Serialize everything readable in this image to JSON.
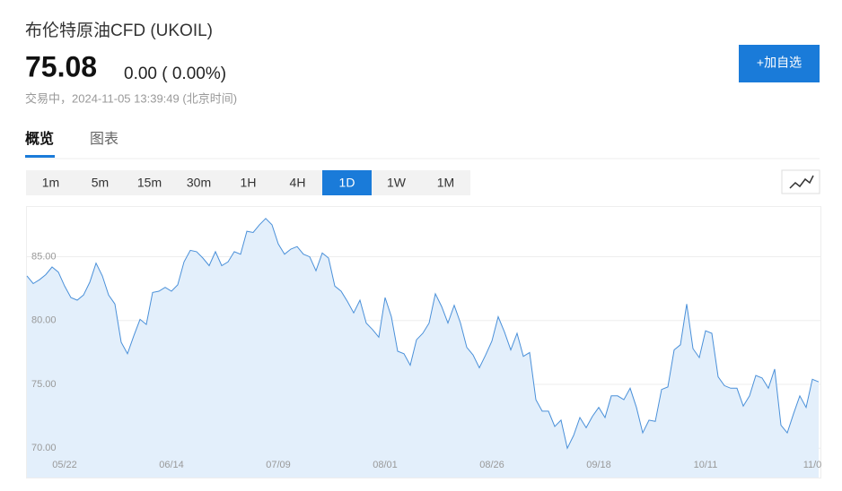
{
  "header": {
    "title": "布伦特原油CFD (UKOIL)",
    "price": "75.08",
    "change": "0.00 ( 0.00%)",
    "status": "交易中，2024-11-05 13:39:49 (北京时间)",
    "button": "+加自选"
  },
  "tabs": [
    "概览",
    "图表"
  ],
  "periods": [
    "1m",
    "5m",
    "15m",
    "30m",
    "1H",
    "4H",
    "1D",
    "1W",
    "1M"
  ],
  "active_period": 6,
  "chart_data": {
    "type": "area",
    "series": [
      {
        "color": "#4a90d9",
        "fill": "#e3effb",
        "values": [
          83.5,
          82.9,
          83.2,
          83.6,
          84.2,
          83.8,
          82.7,
          81.8,
          81.6,
          82.0,
          83.0,
          84.5,
          83.5,
          82.0,
          81.3,
          78.3,
          77.4,
          78.8,
          80.1,
          79.7,
          82.2,
          82.3,
          82.6,
          82.3,
          82.8,
          84.6,
          85.5,
          85.4,
          84.9,
          84.3,
          85.4,
          84.3,
          84.6,
          85.4,
          85.2,
          87.0,
          86.9,
          87.5,
          88.0,
          87.5,
          86.0,
          85.2,
          85.6,
          85.8,
          85.2,
          85.0,
          83.9,
          85.3,
          84.9,
          82.7,
          82.3,
          81.5,
          80.6,
          81.6,
          79.8,
          79.3,
          78.7,
          81.8,
          80.3,
          77.6,
          77.4,
          76.5,
          78.5,
          79.0,
          79.8,
          82.1,
          81.1,
          79.8,
          81.2,
          79.8,
          77.9,
          77.3,
          76.3,
          77.3,
          78.4,
          80.3,
          79.1,
          77.7,
          79.0,
          77.2,
          77.5,
          73.8,
          72.9,
          72.9,
          71.7,
          72.2,
          70.0,
          71.0,
          72.4,
          71.6,
          72.5,
          73.2,
          72.4,
          74.1,
          74.1,
          73.8,
          74.7,
          73.2,
          71.2,
          72.2,
          72.1,
          74.6,
          74.8,
          77.7,
          78.1,
          81.3,
          77.8,
          77.1,
          79.2,
          79.0,
          75.6,
          74.9,
          74.7,
          74.7,
          73.3,
          74.1,
          75.7,
          75.5,
          74.7,
          76.2,
          71.8,
          71.2,
          72.7,
          74.1,
          73.2,
          75.4,
          75.2
        ]
      }
    ],
    "categories": [
      null,
      null,
      null,
      null,
      null,
      null,
      "05/22",
      null,
      null,
      null,
      null,
      null,
      null,
      null,
      null,
      null,
      null,
      null,
      null,
      null,
      null,
      null,
      null,
      "06/14",
      null,
      null,
      null,
      null,
      null,
      null,
      null,
      null,
      null,
      null,
      null,
      null,
      null,
      null,
      null,
      null,
      "07/09",
      null,
      null,
      null,
      null,
      null,
      null,
      null,
      null,
      null,
      null,
      null,
      null,
      null,
      null,
      null,
      null,
      "08/01",
      null,
      null,
      null,
      null,
      null,
      null,
      null,
      null,
      null,
      null,
      null,
      null,
      null,
      null,
      null,
      null,
      "08/26",
      null,
      null,
      null,
      null,
      null,
      null,
      null,
      null,
      null,
      null,
      null,
      null,
      null,
      null,
      null,
      null,
      "09/18",
      null,
      null,
      null,
      null,
      null,
      null,
      null,
      null,
      null,
      null,
      null,
      null,
      null,
      null,
      null,
      null,
      "10/11",
      null,
      null,
      null,
      null,
      null,
      null,
      null,
      null,
      null,
      null,
      null,
      null,
      null,
      null,
      null,
      null,
      "11/0",
      null
    ],
    "ylim": [
      67.7,
      88.9
    ],
    "yticks": [
      {
        "value": 70,
        "label": "70.00"
      },
      {
        "value": 75,
        "label": "75.00"
      },
      {
        "value": 80,
        "label": "80.00"
      },
      {
        "value": 85,
        "label": "85.00"
      }
    ],
    "grid": true
  }
}
